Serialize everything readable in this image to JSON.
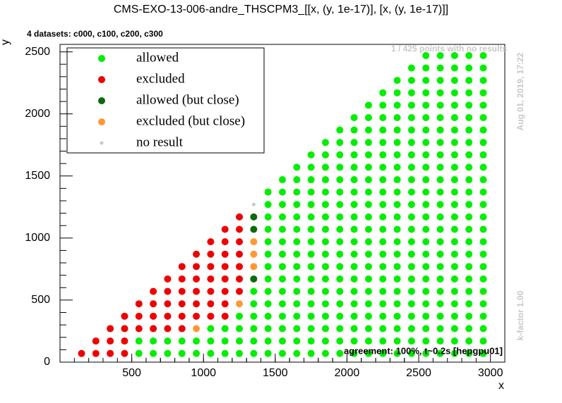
{
  "chart_data": {
    "type": "scatter",
    "title": "CMS-EXO-13-006-andre_THSCPM3_[[x, (y, 1e-17)], [x, (y, 1e-17)]]",
    "subtitle": "4 datasets: c000, c100, c200, c300",
    "annotations": [
      "1 / 425 points with no results",
      "Aug 01, 2019, 17:22",
      "k-factor 1.00",
      "agreement: 100%, t~0.2s [hepgpu01]"
    ],
    "x_label": "x",
    "y_label": "y",
    "xlim": [
      0,
      3100
    ],
    "ylim": [
      0,
      2560
    ],
    "xticks": [
      500,
      1000,
      1500,
      2000,
      2500,
      3000
    ],
    "yticks": [
      0,
      500,
      1000,
      1500,
      2000,
      2500
    ],
    "series": [
      {
        "name": "allowed",
        "color": "#00ee00",
        "x": [
          550,
          550,
          650,
          650,
          750,
          750,
          850,
          850,
          950,
          950,
          1050,
          1050,
          1050,
          1150,
          1150,
          1150,
          1250,
          1250,
          1250,
          1250,
          1350,
          1350,
          1350,
          1350,
          1350,
          1350,
          1450,
          1450,
          1450,
          1450,
          1450,
          1450,
          1450,
          1450,
          1450,
          1450,
          1450,
          1450,
          1450,
          1450,
          1550,
          1550,
          1550,
          1550,
          1550,
          1550,
          1550,
          1550,
          1550,
          1550,
          1550,
          1550,
          1550,
          1550,
          1550,
          1650,
          1650,
          1650,
          1650,
          1650,
          1650,
          1650,
          1650,
          1650,
          1650,
          1650,
          1650,
          1650,
          1650,
          1650,
          1650,
          1750,
          1750,
          1750,
          1750,
          1750,
          1750,
          1750,
          1750,
          1750,
          1750,
          1750,
          1750,
          1750,
          1750,
          1750,
          1750,
          1750,
          1850,
          1850,
          1850,
          1850,
          1850,
          1850,
          1850,
          1850,
          1850,
          1850,
          1850,
          1850,
          1850,
          1850,
          1850,
          1850,
          1850,
          1850,
          1950,
          1950,
          1950,
          1950,
          1950,
          1950,
          1950,
          1950,
          1950,
          1950,
          1950,
          1950,
          1950,
          1950,
          1950,
          1950,
          1950,
          1950,
          1950,
          2050,
          2050,
          2050,
          2050,
          2050,
          2050,
          2050,
          2050,
          2050,
          2050,
          2050,
          2050,
          2050,
          2050,
          2050,
          2050,
          2050,
          2050,
          2050,
          2050,
          2150,
          2150,
          2150,
          2150,
          2150,
          2150,
          2150,
          2150,
          2150,
          2150,
          2150,
          2150,
          2150,
          2150,
          2150,
          2150,
          2150,
          2150,
          2150,
          2150,
          2150,
          2250,
          2250,
          2250,
          2250,
          2250,
          2250,
          2250,
          2250,
          2250,
          2250,
          2250,
          2250,
          2250,
          2250,
          2250,
          2250,
          2250,
          2250,
          2250,
          2250,
          2250,
          2250,
          2350,
          2350,
          2350,
          2350,
          2350,
          2350,
          2350,
          2350,
          2350,
          2350,
          2350,
          2350,
          2350,
          2350,
          2350,
          2350,
          2350,
          2350,
          2350,
          2350,
          2350,
          2350,
          2350,
          2450,
          2450,
          2450,
          2450,
          2450,
          2450,
          2450,
          2450,
          2450,
          2450,
          2450,
          2450,
          2450,
          2450,
          2450,
          2450,
          2450,
          2450,
          2450,
          2450,
          2450,
          2450,
          2450,
          2450,
          2550,
          2550,
          2550,
          2550,
          2550,
          2550,
          2550,
          2550,
          2550,
          2550,
          2550,
          2550,
          2550,
          2550,
          2550,
          2550,
          2550,
          2550,
          2550,
          2550,
          2550,
          2550,
          2550,
          2550,
          2550,
          2650,
          2650,
          2650,
          2650,
          2650,
          2650,
          2650,
          2650,
          2650,
          2650,
          2650,
          2650,
          2650,
          2650,
          2650,
          2650,
          2650,
          2650,
          2650,
          2650,
          2650,
          2650,
          2650,
          2650,
          2650,
          2750,
          2750,
          2750,
          2750,
          2750,
          2750,
          2750,
          2750,
          2750,
          2750,
          2750,
          2750,
          2750,
          2750,
          2750,
          2750,
          2750,
          2750,
          2750,
          2750,
          2750,
          2750,
          2750,
          2750,
          2750,
          2850,
          2850,
          2850,
          2850,
          2850,
          2850,
          2850,
          2850,
          2850,
          2850,
          2850,
          2850,
          2850,
          2850,
          2850,
          2850,
          2850,
          2850,
          2850,
          2850,
          2850,
          2850,
          2850,
          2850,
          2850,
          2950,
          2950,
          2950,
          2950,
          2950,
          2950,
          2950,
          2950,
          2950,
          2950,
          2950,
          2950,
          2950,
          2950,
          2950,
          2950,
          2950,
          2950,
          2950,
          2950,
          2950,
          2950,
          2950,
          2950,
          2950
        ],
        "values": [
          70,
          170,
          70,
          170,
          70,
          170,
          70,
          170,
          70,
          170,
          70,
          170,
          270,
          70,
          170,
          270,
          70,
          170,
          270,
          370,
          70,
          170,
          270,
          370,
          470,
          570,
          70,
          170,
          270,
          370,
          470,
          570,
          670,
          770,
          870,
          970,
          1070,
          1170,
          1270,
          1370,
          70,
          170,
          270,
          370,
          470,
          570,
          670,
          770,
          870,
          970,
          1070,
          1170,
          1270,
          1370,
          1470,
          70,
          170,
          270,
          370,
          470,
          570,
          670,
          770,
          870,
          970,
          1070,
          1170,
          1270,
          1370,
          1470,
          1570,
          70,
          170,
          270,
          370,
          470,
          570,
          670,
          770,
          870,
          970,
          1070,
          1170,
          1270,
          1370,
          1470,
          1570,
          1670,
          70,
          170,
          270,
          370,
          470,
          570,
          670,
          770,
          870,
          970,
          1070,
          1170,
          1270,
          1370,
          1470,
          1570,
          1670,
          1770,
          70,
          170,
          270,
          370,
          470,
          570,
          670,
          770,
          870,
          970,
          1070,
          1170,
          1270,
          1370,
          1470,
          1570,
          1670,
          1770,
          1870,
          70,
          170,
          270,
          370,
          470,
          570,
          670,
          770,
          870,
          970,
          1070,
          1170,
          1270,
          1370,
          1470,
          1570,
          1670,
          1770,
          1870,
          1970,
          70,
          170,
          270,
          370,
          470,
          570,
          670,
          770,
          870,
          970,
          1070,
          1170,
          1270,
          1370,
          1470,
          1570,
          1670,
          1770,
          1870,
          1970,
          2070,
          70,
          170,
          270,
          370,
          470,
          570,
          670,
          770,
          870,
          970,
          1070,
          1170,
          1270,
          1370,
          1470,
          1570,
          1670,
          1770,
          1870,
          1970,
          2070,
          2170,
          70,
          170,
          270,
          370,
          470,
          570,
          670,
          770,
          870,
          970,
          1070,
          1170,
          1270,
          1370,
          1470,
          1570,
          1670,
          1770,
          1870,
          1970,
          2070,
          2170,
          2270,
          70,
          170,
          270,
          370,
          470,
          570,
          670,
          770,
          870,
          970,
          1070,
          1170,
          1270,
          1370,
          1470,
          1570,
          1670,
          1770,
          1870,
          1970,
          2070,
          2170,
          2270,
          2370,
          70,
          170,
          270,
          370,
          470,
          570,
          670,
          770,
          870,
          970,
          1070,
          1170,
          1270,
          1370,
          1470,
          1570,
          1670,
          1770,
          1870,
          1970,
          2070,
          2170,
          2270,
          2370,
          2470,
          70,
          170,
          270,
          370,
          470,
          570,
          670,
          770,
          870,
          970,
          1070,
          1170,
          1270,
          1370,
          1470,
          1570,
          1670,
          1770,
          1870,
          1970,
          2070,
          2170,
          2270,
          2370,
          2470,
          70,
          170,
          270,
          370,
          470,
          570,
          670,
          770,
          870,
          970,
          1070,
          1170,
          1270,
          1370,
          1470,
          1570,
          1670,
          1770,
          1870,
          1970,
          2070,
          2170,
          2270,
          2370,
          2470,
          70,
          170,
          270,
          370,
          470,
          570,
          670,
          770,
          870,
          970,
          1070,
          1170,
          1270,
          1370,
          1470,
          1570,
          1670,
          1770,
          1870,
          1970,
          2070,
          2170,
          2270,
          2370,
          2470,
          70,
          170,
          270,
          370,
          470,
          570,
          670,
          770,
          870,
          970,
          1070,
          1170,
          1270,
          1370,
          1470,
          1570,
          1670,
          1770,
          1870,
          1970,
          2070,
          2170,
          2270,
          2370,
          2470
        ]
      },
      {
        "name": "excluded",
        "color": "#ee0000",
        "x": [
          150,
          250,
          250,
          350,
          350,
          350,
          450,
          450,
          450,
          450,
          550,
          550,
          550,
          650,
          650,
          650,
          650,
          750,
          750,
          750,
          750,
          750,
          850,
          850,
          850,
          850,
          850,
          850,
          950,
          950,
          950,
          950,
          950,
          950,
          1050,
          1050,
          1050,
          1050,
          1050,
          1050,
          1050,
          1150,
          1150,
          1150,
          1150,
          1150,
          1150,
          1150,
          1150,
          1250,
          1250,
          1250,
          1250,
          1250,
          1250,
          1250
        ],
        "values": [
          70,
          70,
          170,
          70,
          170,
          270,
          70,
          170,
          270,
          370,
          270,
          370,
          470,
          270,
          370,
          470,
          570,
          270,
          370,
          470,
          570,
          670,
          270,
          370,
          470,
          570,
          670,
          770,
          370,
          470,
          570,
          670,
          770,
          870,
          370,
          470,
          570,
          670,
          770,
          870,
          970,
          370,
          470,
          570,
          670,
          770,
          870,
          970,
          1070,
          570,
          670,
          770,
          870,
          970,
          1070,
          1170
        ]
      },
      {
        "name": "allowed (but close)",
        "color": "#0b6a0b",
        "x": [
          1350,
          1350,
          1350
        ],
        "values": [
          670,
          1070,
          1170
        ]
      },
      {
        "name": "excluded (but close)",
        "color": "#ff9933",
        "x": [
          950,
          1250,
          1350,
          1350,
          1350
        ],
        "values": [
          270,
          470,
          770,
          870,
          970
        ]
      },
      {
        "name": "no result",
        "color": "#c8c8c8",
        "x": [
          1350
        ],
        "values": [
          1270
        ]
      }
    ]
  }
}
